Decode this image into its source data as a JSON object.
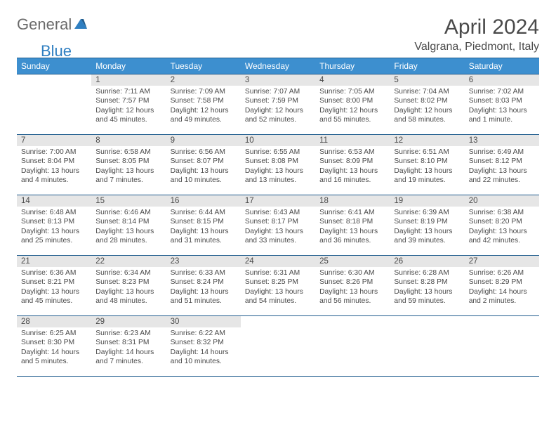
{
  "brand": {
    "text1": "General",
    "text2": "Blue"
  },
  "title": "April 2024",
  "location": "Valgrana, Piedmont, Italy",
  "colors": {
    "header_blue": "#3d8fcf",
    "border_blue": "#1f5c8e",
    "daynum_bg": "#e6e6e6",
    "text": "#4a4a4a",
    "logo_gray": "#6a6a6a",
    "logo_blue": "#2f7fc1"
  },
  "day_headers": [
    "Sunday",
    "Monday",
    "Tuesday",
    "Wednesday",
    "Thursday",
    "Friday",
    "Saturday"
  ],
  "weeks": [
    [
      {
        "n": "",
        "sr": "",
        "ss": "",
        "dl1": "",
        "dl2": "",
        "empty": true
      },
      {
        "n": "1",
        "sr": "Sunrise: 7:11 AM",
        "ss": "Sunset: 7:57 PM",
        "dl1": "Daylight: 12 hours",
        "dl2": "and 45 minutes."
      },
      {
        "n": "2",
        "sr": "Sunrise: 7:09 AM",
        "ss": "Sunset: 7:58 PM",
        "dl1": "Daylight: 12 hours",
        "dl2": "and 49 minutes."
      },
      {
        "n": "3",
        "sr": "Sunrise: 7:07 AM",
        "ss": "Sunset: 7:59 PM",
        "dl1": "Daylight: 12 hours",
        "dl2": "and 52 minutes."
      },
      {
        "n": "4",
        "sr": "Sunrise: 7:05 AM",
        "ss": "Sunset: 8:00 PM",
        "dl1": "Daylight: 12 hours",
        "dl2": "and 55 minutes."
      },
      {
        "n": "5",
        "sr": "Sunrise: 7:04 AM",
        "ss": "Sunset: 8:02 PM",
        "dl1": "Daylight: 12 hours",
        "dl2": "and 58 minutes."
      },
      {
        "n": "6",
        "sr": "Sunrise: 7:02 AM",
        "ss": "Sunset: 8:03 PM",
        "dl1": "Daylight: 13 hours",
        "dl2": "and 1 minute."
      }
    ],
    [
      {
        "n": "7",
        "sr": "Sunrise: 7:00 AM",
        "ss": "Sunset: 8:04 PM",
        "dl1": "Daylight: 13 hours",
        "dl2": "and 4 minutes."
      },
      {
        "n": "8",
        "sr": "Sunrise: 6:58 AM",
        "ss": "Sunset: 8:05 PM",
        "dl1": "Daylight: 13 hours",
        "dl2": "and 7 minutes."
      },
      {
        "n": "9",
        "sr": "Sunrise: 6:56 AM",
        "ss": "Sunset: 8:07 PM",
        "dl1": "Daylight: 13 hours",
        "dl2": "and 10 minutes."
      },
      {
        "n": "10",
        "sr": "Sunrise: 6:55 AM",
        "ss": "Sunset: 8:08 PM",
        "dl1": "Daylight: 13 hours",
        "dl2": "and 13 minutes."
      },
      {
        "n": "11",
        "sr": "Sunrise: 6:53 AM",
        "ss": "Sunset: 8:09 PM",
        "dl1": "Daylight: 13 hours",
        "dl2": "and 16 minutes."
      },
      {
        "n": "12",
        "sr": "Sunrise: 6:51 AM",
        "ss": "Sunset: 8:10 PM",
        "dl1": "Daylight: 13 hours",
        "dl2": "and 19 minutes."
      },
      {
        "n": "13",
        "sr": "Sunrise: 6:49 AM",
        "ss": "Sunset: 8:12 PM",
        "dl1": "Daylight: 13 hours",
        "dl2": "and 22 minutes."
      }
    ],
    [
      {
        "n": "14",
        "sr": "Sunrise: 6:48 AM",
        "ss": "Sunset: 8:13 PM",
        "dl1": "Daylight: 13 hours",
        "dl2": "and 25 minutes."
      },
      {
        "n": "15",
        "sr": "Sunrise: 6:46 AM",
        "ss": "Sunset: 8:14 PM",
        "dl1": "Daylight: 13 hours",
        "dl2": "and 28 minutes."
      },
      {
        "n": "16",
        "sr": "Sunrise: 6:44 AM",
        "ss": "Sunset: 8:15 PM",
        "dl1": "Daylight: 13 hours",
        "dl2": "and 31 minutes."
      },
      {
        "n": "17",
        "sr": "Sunrise: 6:43 AM",
        "ss": "Sunset: 8:17 PM",
        "dl1": "Daylight: 13 hours",
        "dl2": "and 33 minutes."
      },
      {
        "n": "18",
        "sr": "Sunrise: 6:41 AM",
        "ss": "Sunset: 8:18 PM",
        "dl1": "Daylight: 13 hours",
        "dl2": "and 36 minutes."
      },
      {
        "n": "19",
        "sr": "Sunrise: 6:39 AM",
        "ss": "Sunset: 8:19 PM",
        "dl1": "Daylight: 13 hours",
        "dl2": "and 39 minutes."
      },
      {
        "n": "20",
        "sr": "Sunrise: 6:38 AM",
        "ss": "Sunset: 8:20 PM",
        "dl1": "Daylight: 13 hours",
        "dl2": "and 42 minutes."
      }
    ],
    [
      {
        "n": "21",
        "sr": "Sunrise: 6:36 AM",
        "ss": "Sunset: 8:21 PM",
        "dl1": "Daylight: 13 hours",
        "dl2": "and 45 minutes."
      },
      {
        "n": "22",
        "sr": "Sunrise: 6:34 AM",
        "ss": "Sunset: 8:23 PM",
        "dl1": "Daylight: 13 hours",
        "dl2": "and 48 minutes."
      },
      {
        "n": "23",
        "sr": "Sunrise: 6:33 AM",
        "ss": "Sunset: 8:24 PM",
        "dl1": "Daylight: 13 hours",
        "dl2": "and 51 minutes."
      },
      {
        "n": "24",
        "sr": "Sunrise: 6:31 AM",
        "ss": "Sunset: 8:25 PM",
        "dl1": "Daylight: 13 hours",
        "dl2": "and 54 minutes."
      },
      {
        "n": "25",
        "sr": "Sunrise: 6:30 AM",
        "ss": "Sunset: 8:26 PM",
        "dl1": "Daylight: 13 hours",
        "dl2": "and 56 minutes."
      },
      {
        "n": "26",
        "sr": "Sunrise: 6:28 AM",
        "ss": "Sunset: 8:28 PM",
        "dl1": "Daylight: 13 hours",
        "dl2": "and 59 minutes."
      },
      {
        "n": "27",
        "sr": "Sunrise: 6:26 AM",
        "ss": "Sunset: 8:29 PM",
        "dl1": "Daylight: 14 hours",
        "dl2": "and 2 minutes."
      }
    ],
    [
      {
        "n": "28",
        "sr": "Sunrise: 6:25 AM",
        "ss": "Sunset: 8:30 PM",
        "dl1": "Daylight: 14 hours",
        "dl2": "and 5 minutes."
      },
      {
        "n": "29",
        "sr": "Sunrise: 6:23 AM",
        "ss": "Sunset: 8:31 PM",
        "dl1": "Daylight: 14 hours",
        "dl2": "and 7 minutes."
      },
      {
        "n": "30",
        "sr": "Sunrise: 6:22 AM",
        "ss": "Sunset: 8:32 PM",
        "dl1": "Daylight: 14 hours",
        "dl2": "and 10 minutes."
      },
      {
        "n": "",
        "sr": "",
        "ss": "",
        "dl1": "",
        "dl2": "",
        "empty": true
      },
      {
        "n": "",
        "sr": "",
        "ss": "",
        "dl1": "",
        "dl2": "",
        "empty": true
      },
      {
        "n": "",
        "sr": "",
        "ss": "",
        "dl1": "",
        "dl2": "",
        "empty": true
      },
      {
        "n": "",
        "sr": "",
        "ss": "",
        "dl1": "",
        "dl2": "",
        "empty": true
      }
    ]
  ]
}
